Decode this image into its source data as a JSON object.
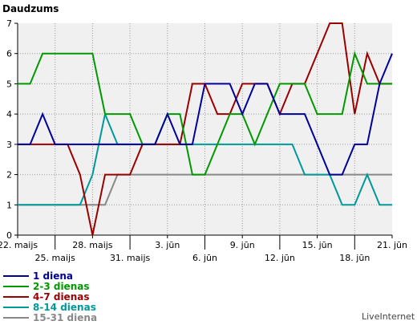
{
  "chart_data": {
    "type": "line",
    "ylabel": "Daudzums",
    "ylim": [
      0,
      7
    ],
    "yticks": [
      "0",
      "1",
      "2",
      "3",
      "4",
      "5",
      "6",
      "7"
    ],
    "grid": true,
    "x_count": 31,
    "xticks": [
      {
        "i": 0,
        "label": "22. maijs",
        "row": 0
      },
      {
        "i": 3,
        "label": "25. maijs",
        "row": 1
      },
      {
        "i": 6,
        "label": "28. maijs",
        "row": 0
      },
      {
        "i": 9,
        "label": "31. maijs",
        "row": 1
      },
      {
        "i": 12,
        "label": "3. jūn",
        "row": 0
      },
      {
        "i": 15,
        "label": "6. jūn",
        "row": 1
      },
      {
        "i": 18,
        "label": "9. jūn",
        "row": 0
      },
      {
        "i": 21,
        "label": "12. jūn",
        "row": 1
      },
      {
        "i": 24,
        "label": "15. jūn",
        "row": 0
      },
      {
        "i": 27,
        "label": "18. jūn",
        "row": 1
      },
      {
        "i": 30,
        "label": "21. jūn",
        "row": 0
      }
    ],
    "series": [
      {
        "name": "15-31 diena",
        "color": "#888888",
        "values": [
          1,
          1,
          1,
          1,
          1,
          1,
          1,
          1,
          2,
          2,
          2,
          2,
          2,
          2,
          2,
          2,
          2,
          2,
          2,
          2,
          2,
          2,
          2,
          2,
          2,
          2,
          2,
          2,
          2,
          2,
          2
        ]
      },
      {
        "name": "8-14 dienas",
        "color": "#009999",
        "values": [
          1,
          1,
          1,
          1,
          1,
          1,
          2,
          4,
          3,
          3,
          3,
          3,
          3,
          3,
          3,
          3,
          3,
          3,
          3,
          3,
          3,
          3,
          3,
          2,
          2,
          2,
          1,
          1,
          2,
          1,
          1
        ]
      },
      {
        "name": "4-7 dienas",
        "color": "#990000",
        "values": [
          3,
          3,
          3,
          3,
          3,
          2,
          0,
          2,
          2,
          2,
          3,
          3,
          3,
          3,
          5,
          5,
          4,
          4,
          5,
          5,
          5,
          4,
          5,
          5,
          6,
          7,
          7,
          4,
          6,
          5,
          5
        ]
      },
      {
        "name": "2-3 dienas",
        "color": "#009900",
        "values": [
          5,
          5,
          6,
          6,
          6,
          6,
          6,
          4,
          4,
          4,
          3,
          3,
          4,
          4,
          2,
          2,
          3,
          4,
          4,
          3,
          4,
          5,
          5,
          5,
          4,
          4,
          4,
          6,
          5,
          5,
          5
        ]
      },
      {
        "name": "1 diena",
        "color": "#000099",
        "values": [
          3,
          3,
          4,
          3,
          3,
          3,
          3,
          3,
          3,
          3,
          3,
          3,
          4,
          3,
          3,
          5,
          5,
          5,
          4,
          5,
          5,
          4,
          4,
          4,
          3,
          2,
          2,
          3,
          3,
          5,
          6
        ]
      }
    ],
    "legend": [
      {
        "name": "1 diena",
        "color": "#000099"
      },
      {
        "name": "2-3 dienas",
        "color": "#009900"
      },
      {
        "name": "4-7 dienas",
        "color": "#990000"
      },
      {
        "name": "8-14 dienas",
        "color": "#009999"
      },
      {
        "name": "15-31 diena",
        "color": "#888888"
      }
    ],
    "credit": "LiveInternet",
    "background": "#f0f0f0"
  }
}
